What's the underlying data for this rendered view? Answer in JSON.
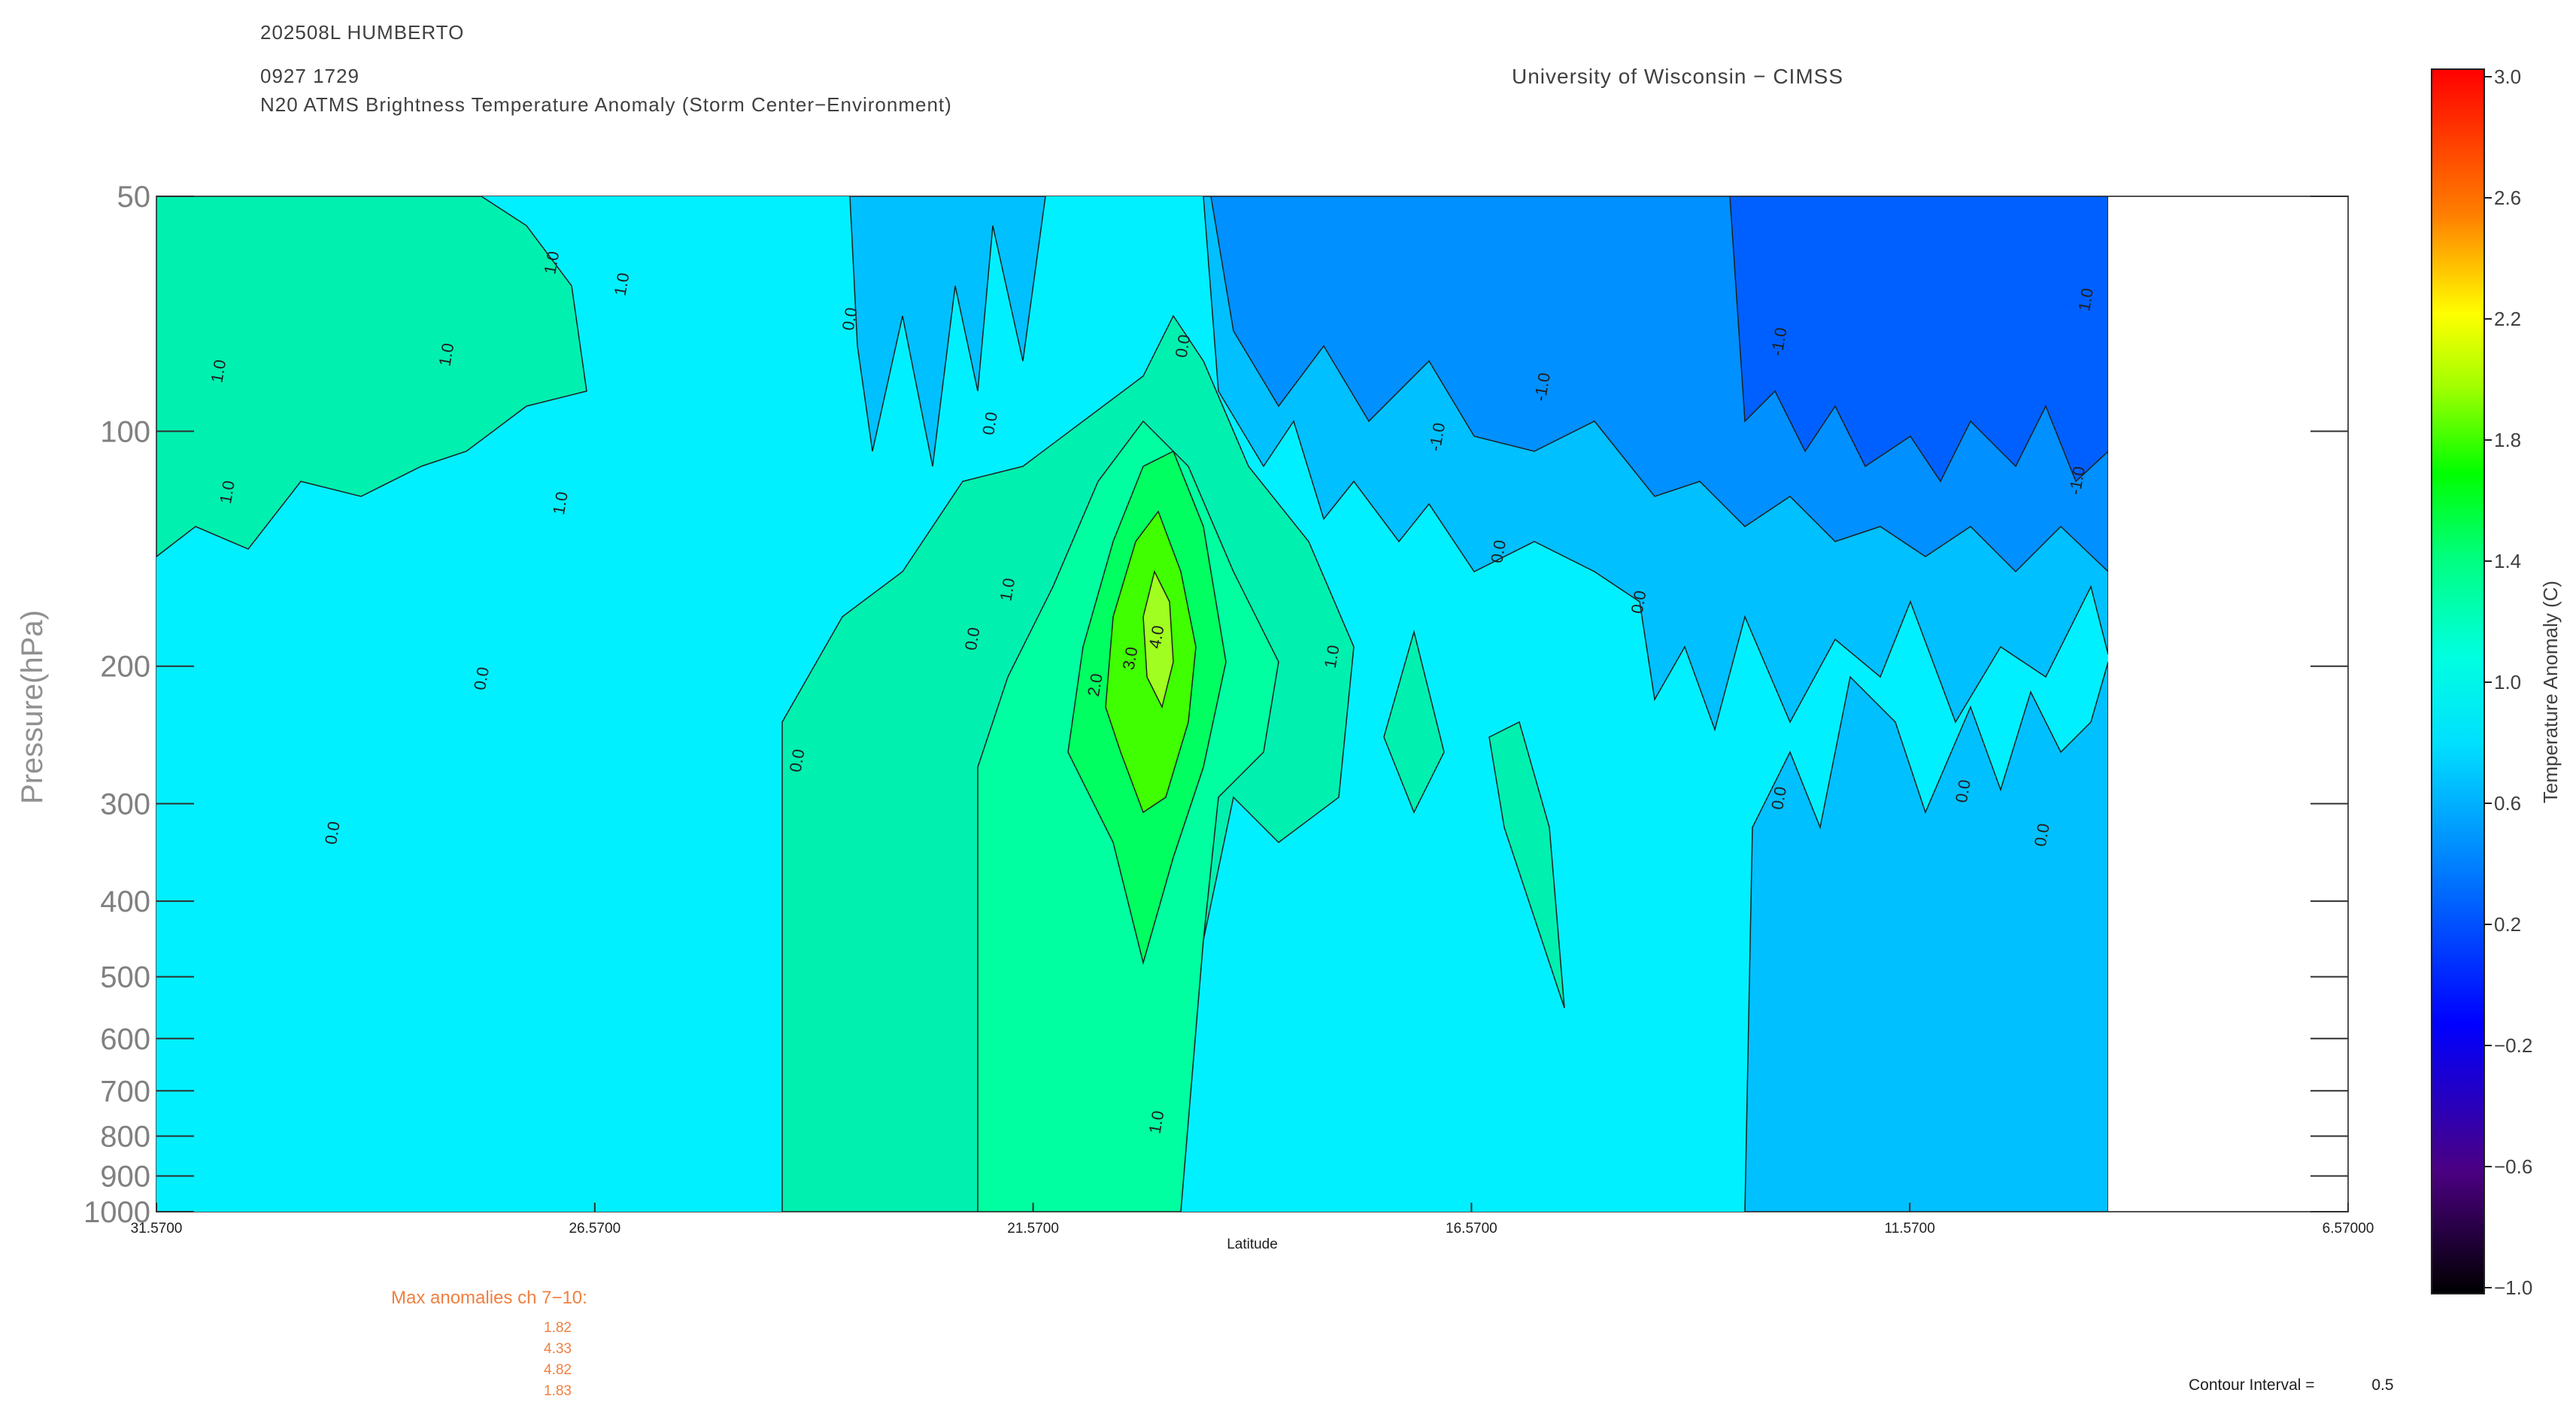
{
  "header": {
    "storm_id": "202508L HUMBERTO",
    "datetime": "0927 1729",
    "product": "N20 ATMS Brightness Temperature Anomaly (Storm Center−Environment)",
    "institution": "University of Wisconsin − CIMSS"
  },
  "max_anomalies": {
    "label": "Max anomalies ch 7−10:",
    "values": [
      "1.82",
      "4.33",
      "4.82",
      "1.83"
    ]
  },
  "contour_interval": {
    "label": "Contour Interval =",
    "value": "0.5"
  },
  "colorbar": {
    "label": "Temperature Anomaly (C)",
    "ticks": [
      "3.0",
      "2.6",
      "2.2",
      "1.8",
      "1.4",
      "1.0",
      "0.6",
      "0.2",
      "−0.2",
      "−0.6",
      "−1.0"
    ],
    "range": [
      -1.0,
      3.0
    ],
    "colors": [
      "#000000",
      "#4b0082",
      "#0000ff",
      "#00a0ff",
      "#00ffff",
      "#00ff80",
      "#00ff00",
      "#ffff00",
      "#ff8000",
      "#ff0000"
    ]
  },
  "chart_data": {
    "type": "heatmap",
    "title": "N20 ATMS Brightness Temperature Anomaly (Storm Center−Environment)",
    "xlabel": "Latitude",
    "ylabel": "Pressure(hPa)",
    "x_tick_labels": [
      "31.5700",
      "26.5700",
      "21.5700",
      "16.5700",
      "11.5700",
      "6.57000"
    ],
    "x_ticks": [
      31.57,
      26.57,
      21.57,
      16.57,
      11.57,
      6.57
    ],
    "xlim": [
      31.57,
      6.57
    ],
    "y_tick_labels": [
      "50",
      "100",
      "200",
      "300",
      "400",
      "500",
      "600",
      "700",
      "800",
      "900",
      "1000"
    ],
    "y_ticks": [
      50,
      100,
      200,
      300,
      400,
      500,
      600,
      700,
      800,
      900,
      1000
    ],
    "ylim": [
      1000,
      50
    ],
    "y_scale": "log",
    "data_x_extent": [
      31.57,
      9.3
    ],
    "contour_labels": [
      {
        "text": "1.0",
        "lat": 30.8,
        "p": 84
      },
      {
        "text": "1.0",
        "lat": 28.2,
        "p": 80
      },
      {
        "text": "1.0",
        "lat": 26.2,
        "p": 65
      },
      {
        "text": "1.0",
        "lat": 27.0,
        "p": 61
      },
      {
        "text": "1.0",
        "lat": 26.9,
        "p": 124
      },
      {
        "text": "1.0",
        "lat": 30.7,
        "p": 120
      },
      {
        "text": "0.0",
        "lat": 27.8,
        "p": 208
      },
      {
        "text": "0.0",
        "lat": 29.5,
        "p": 328
      },
      {
        "text": "0.0",
        "lat": 24.2,
        "p": 265
      },
      {
        "text": "0.0",
        "lat": 23.6,
        "p": 72
      },
      {
        "text": "0.0",
        "lat": 22.0,
        "p": 98
      },
      {
        "text": "1.0",
        "lat": 21.8,
        "p": 160
      },
      {
        "text": "0.0",
        "lat": 22.2,
        "p": 185
      },
      {
        "text": "2.0",
        "lat": 20.8,
        "p": 212
      },
      {
        "text": "3.0",
        "lat": 20.4,
        "p": 196
      },
      {
        "text": "4.0",
        "lat": 20.1,
        "p": 184
      },
      {
        "text": "1.0",
        "lat": 18.1,
        "p": 195
      },
      {
        "text": "0.0",
        "lat": 19.8,
        "p": 78
      },
      {
        "text": "1.0",
        "lat": 20.1,
        "p": 770
      },
      {
        "text": "-1.0",
        "lat": 16.9,
        "p": 102
      },
      {
        "text": "-1.0",
        "lat": 15.7,
        "p": 88
      },
      {
        "text": "0.0",
        "lat": 16.2,
        "p": 143
      },
      {
        "text": "0.0",
        "lat": 14.6,
        "p": 166
      },
      {
        "text": "-1.0",
        "lat": 13.0,
        "p": 77
      },
      {
        "text": "0.0",
        "lat": 13.0,
        "p": 296
      },
      {
        "text": "0.0",
        "lat": 10.9,
        "p": 290
      },
      {
        "text": "0.0",
        "lat": 10.0,
        "p": 330
      },
      {
        "text": "-1.0",
        "lat": 9.6,
        "p": 116
      },
      {
        "text": "1.0",
        "lat": 9.5,
        "p": 68
      }
    ]
  }
}
